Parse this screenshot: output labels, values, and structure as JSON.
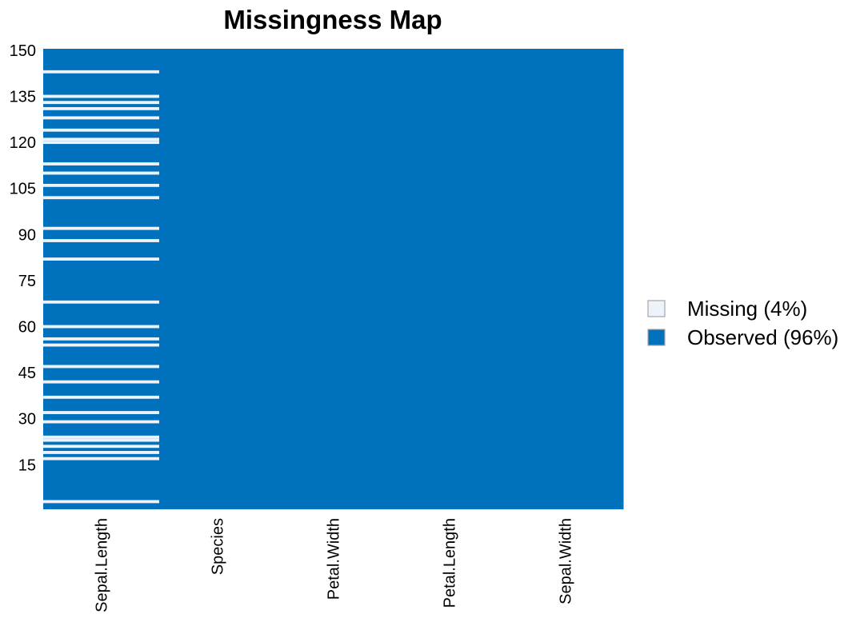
{
  "chart_data": {
    "type": "heatmap",
    "title": "Missingness Map",
    "xlabel": "",
    "ylabel": "",
    "columns": [
      "Sepal.Length",
      "Species",
      "Petal.Width",
      "Petal.Length",
      "Sepal.Width"
    ],
    "rows": 150,
    "ylim": [
      1,
      150
    ],
    "yticks": [
      15,
      30,
      45,
      60,
      75,
      90,
      105,
      120,
      135,
      150
    ],
    "missing_rows": {
      "Sepal.Length": [
        3,
        17,
        19,
        21,
        23,
        24,
        29,
        32,
        37,
        42,
        47,
        54,
        56,
        60,
        68,
        82,
        88,
        92,
        102,
        106,
        110,
        113,
        120,
        121,
        124,
        128,
        131,
        133,
        135,
        143
      ],
      "Species": [],
      "Petal.Width": [],
      "Petal.Length": [],
      "Sepal.Width": []
    },
    "legend": {
      "position": "right",
      "entries": [
        {
          "label": "Missing (4%)",
          "color": "#eef2fa"
        },
        {
          "label": "Observed (96%)",
          "color": "#0071bc"
        }
      ]
    },
    "colors": {
      "observed": "#0071bc",
      "missing": "#eef2fa"
    },
    "grid": false
  }
}
